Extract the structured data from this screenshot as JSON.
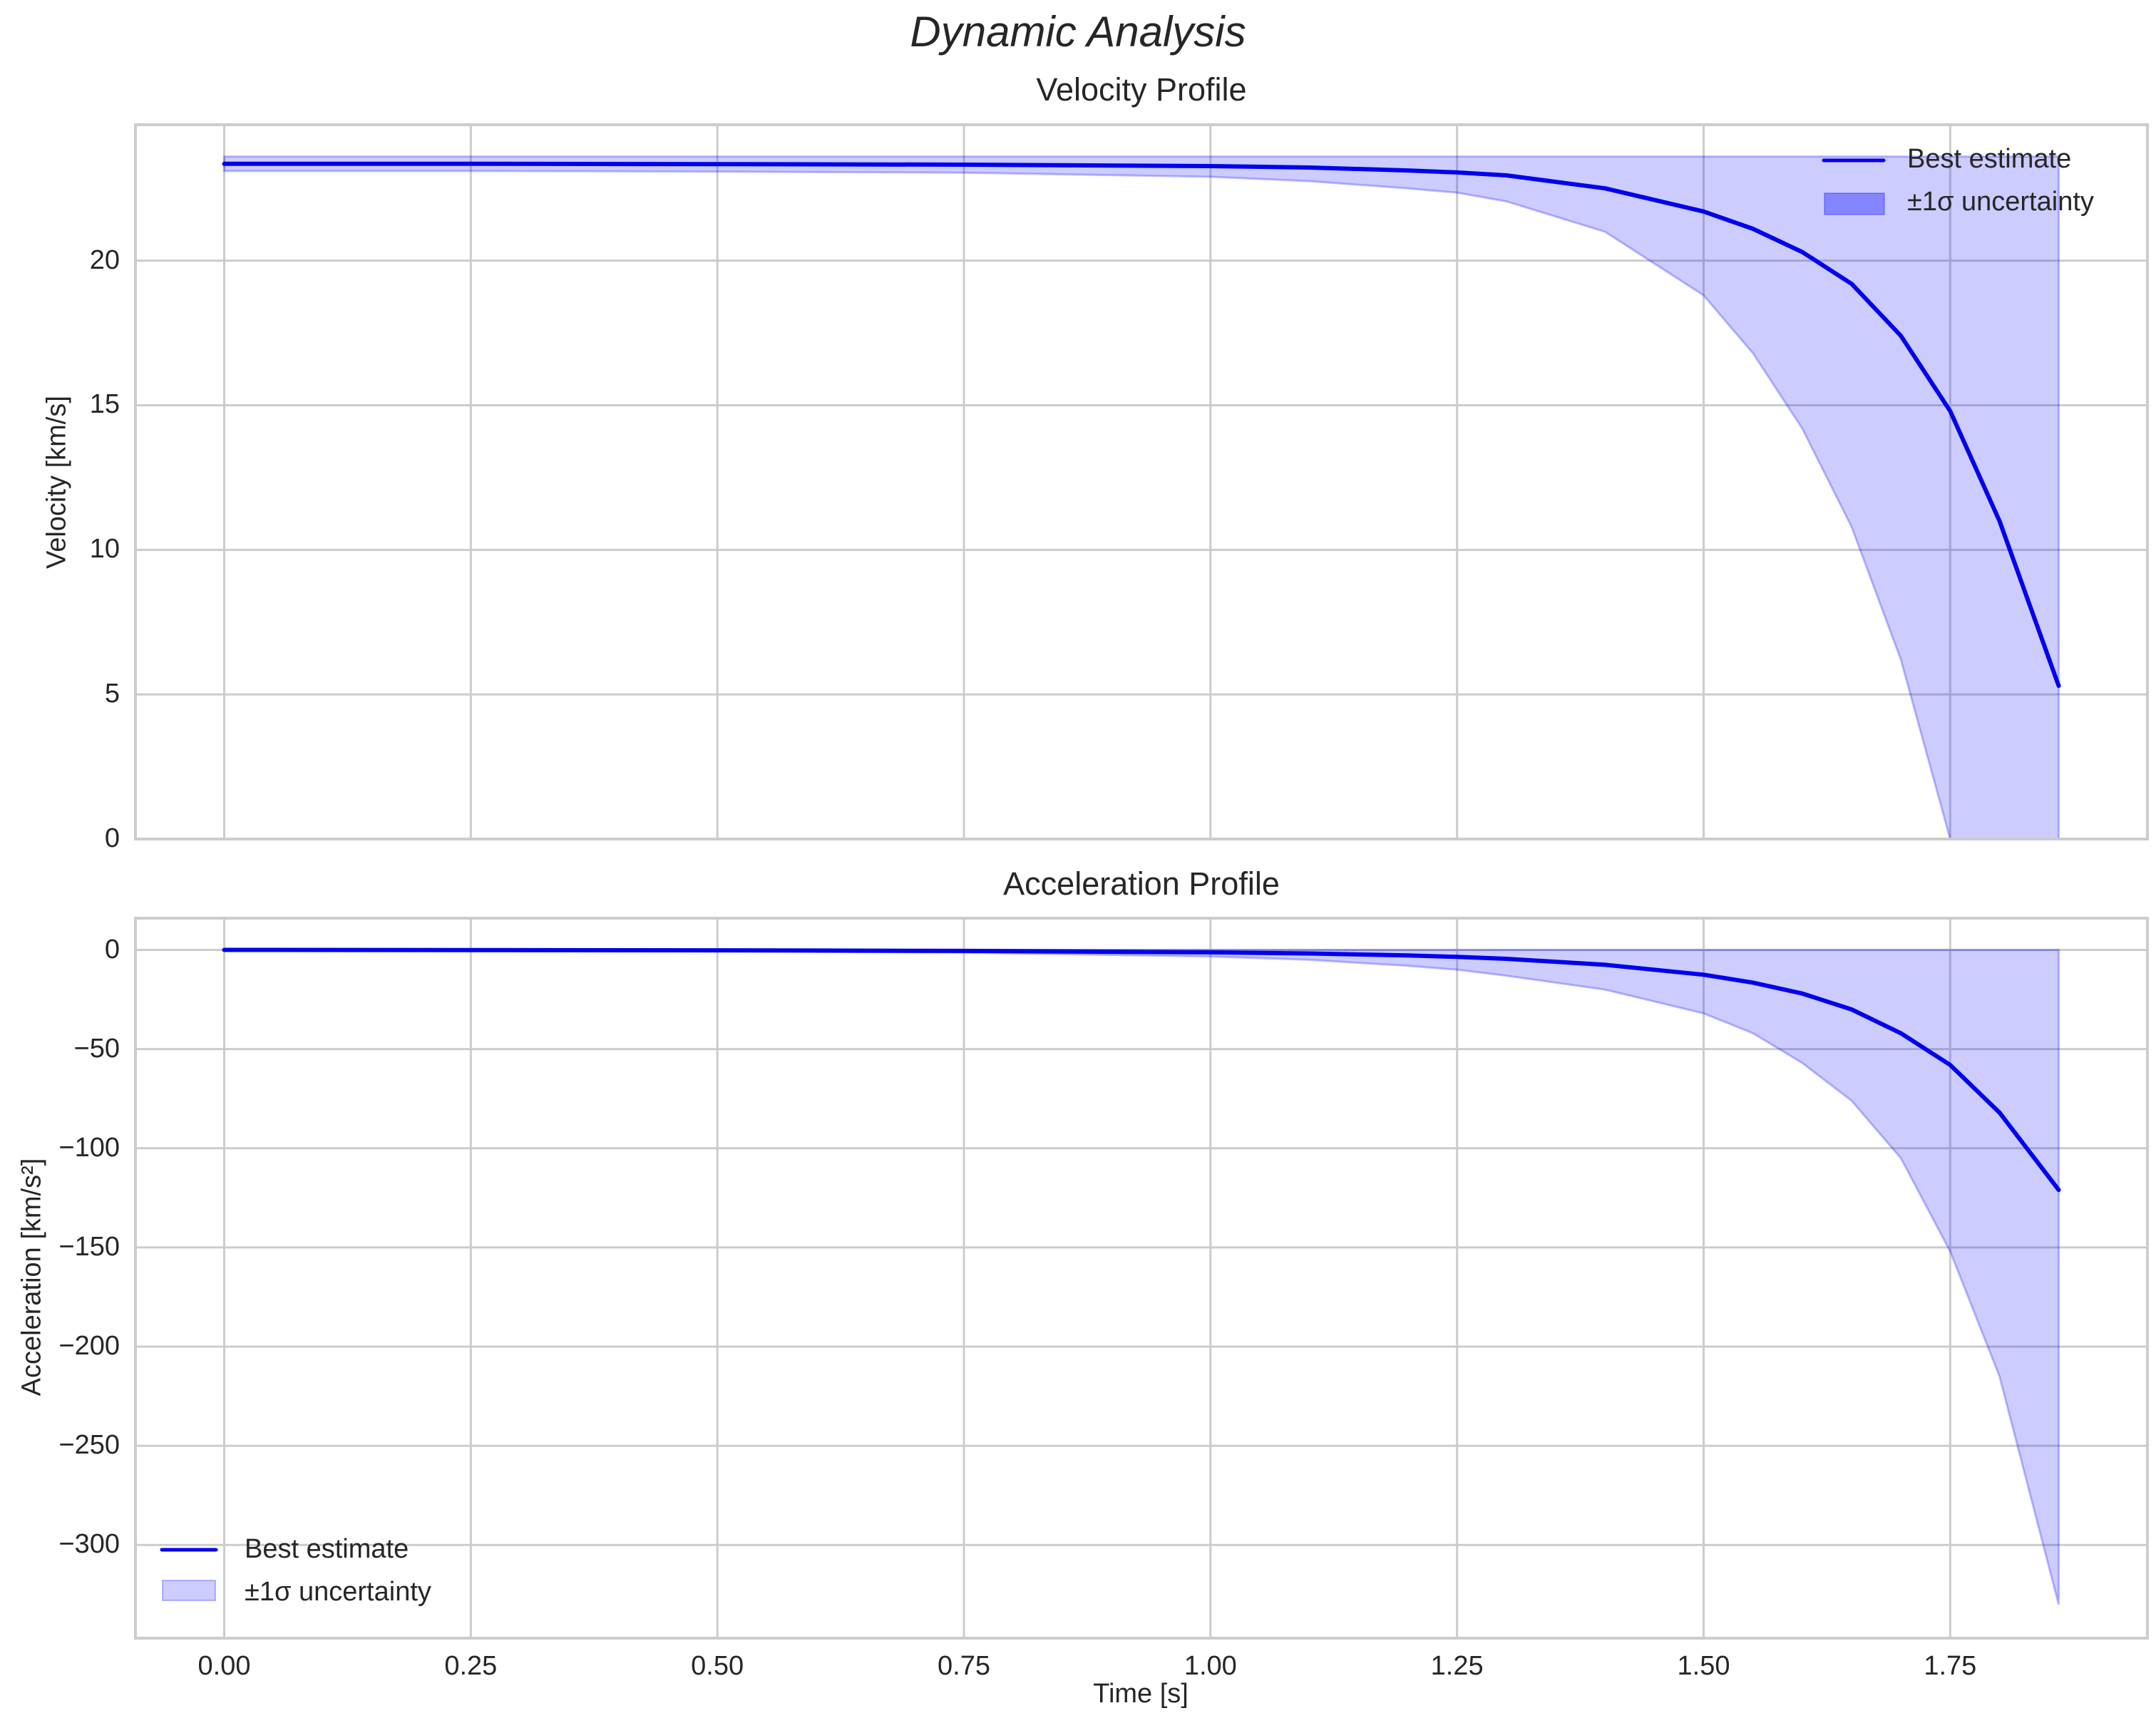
{
  "figure": {
    "suptitle": "Dynamic Analysis"
  },
  "colors": {
    "line": "#0000ee",
    "band_fill": "#0000ff",
    "band_alpha": 0.2,
    "grid": "#cccccc",
    "spine": "#cccccc",
    "text": "#262626"
  },
  "chart_data": [
    {
      "type": "line",
      "title": "Velocity Profile",
      "xlabel": "",
      "ylabel": "Velocity [km/s]",
      "xlim": [
        -0.09,
        1.95
      ],
      "ylim": [
        0,
        24.7
      ],
      "xticks": [
        "0.00",
        "0.25",
        "0.50",
        "0.75",
        "1.00",
        "1.25",
        "1.50",
        "1.75"
      ],
      "yticks": [
        "0",
        "5",
        "10",
        "15",
        "20"
      ],
      "grid": true,
      "legend": {
        "position": "upper right",
        "entries": [
          "Best estimate",
          "±1σ uncertainty"
        ]
      },
      "x": [
        0.0,
        0.25,
        0.5,
        0.75,
        1.0,
        1.1,
        1.2,
        1.25,
        1.3,
        1.4,
        1.5,
        1.55,
        1.6,
        1.65,
        1.7,
        1.75,
        1.8,
        1.86
      ],
      "series": [
        {
          "name": "Best estimate",
          "values": [
            23.35,
            23.35,
            23.34,
            23.32,
            23.27,
            23.22,
            23.12,
            23.05,
            22.95,
            22.5,
            21.7,
            21.1,
            20.3,
            19.2,
            17.4,
            14.8,
            11.0,
            5.3
          ]
        },
        {
          "name": "±1σ uncertainty (upper)",
          "values": [
            23.6,
            23.6,
            23.6,
            23.6,
            23.6,
            23.6,
            23.6,
            23.6,
            23.6,
            23.6,
            23.6,
            23.6,
            23.6,
            23.6,
            23.6,
            23.6,
            23.6,
            23.6
          ]
        },
        {
          "name": "±1σ uncertainty (lower)",
          "values": [
            23.1,
            23.1,
            23.08,
            23.04,
            22.9,
            22.75,
            22.5,
            22.35,
            22.05,
            21.0,
            18.8,
            16.8,
            14.2,
            10.8,
            6.2,
            0.0,
            0.0,
            0.0
          ]
        }
      ]
    },
    {
      "type": "line",
      "title": "Acceleration Profile",
      "xlabel": "Time [s]",
      "ylabel": "Acceleration [km/s²]",
      "xlim": [
        -0.09,
        1.95
      ],
      "ylim": [
        -347,
        16
      ],
      "xticks": [
        "0.00",
        "0.25",
        "0.50",
        "0.75",
        "1.00",
        "1.25",
        "1.50",
        "1.75"
      ],
      "yticks": [
        "0",
        "−50",
        "−100",
        "−150",
        "−200",
        "−250",
        "−300"
      ],
      "grid": true,
      "legend": {
        "position": "lower left",
        "entries": [
          "Best estimate",
          "±1σ uncertainty"
        ]
      },
      "x": [
        0.0,
        0.25,
        0.5,
        0.75,
        1.0,
        1.1,
        1.2,
        1.25,
        1.3,
        1.4,
        1.5,
        1.55,
        1.6,
        1.65,
        1.7,
        1.75,
        1.8,
        1.86
      ],
      "series": [
        {
          "name": "Best estimate",
          "values": [
            0,
            -0.1,
            -0.2,
            -0.5,
            -1.2,
            -1.8,
            -2.8,
            -3.5,
            -4.5,
            -7.5,
            -12.5,
            -16.5,
            -22,
            -30,
            -42,
            -58,
            -82,
            -121
          ]
        },
        {
          "name": "±1σ uncertainty (upper)",
          "values": [
            0,
            0,
            0,
            0,
            0,
            0,
            0,
            0,
            0,
            0,
            0,
            0,
            0,
            0,
            0,
            0,
            0,
            0
          ]
        },
        {
          "name": "±1σ uncertainty (lower)",
          "values": [
            0,
            -0.3,
            -0.6,
            -1.4,
            -3.3,
            -5,
            -8,
            -10,
            -13,
            -20,
            -32,
            -42,
            -57,
            -76,
            -105,
            -152,
            -215,
            -330
          ]
        }
      ]
    }
  ]
}
